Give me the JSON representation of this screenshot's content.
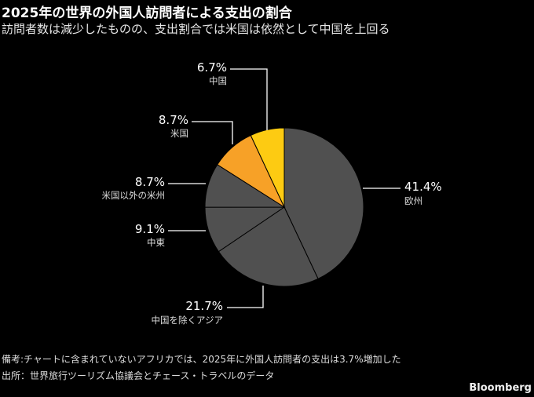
{
  "title": "2025年の世界の外国人訪問者による支出の割合",
  "subtitle": "訪問者数は減少したものの、支出割合では米国は依然として中国を上回る",
  "note": "備考:チャートに含まれていないアフリカでは、2025年に外国人訪問者の支出は3.7%増加した",
  "source": "出所：世界旅行ツーリズム協議会とチェース・トラベルのデータ",
  "brand": "Bloomberg",
  "chart_data": {
    "type": "pie",
    "title": "2025年の世界の外国人訪問者による支出の割合",
    "start": "12 o'clock, clockwise",
    "slices": [
      {
        "name": "欧州",
        "value": 41.4,
        "label": "41.4%",
        "color": "#505050"
      },
      {
        "name": "中国を除くアジア",
        "value": 21.7,
        "label": "21.7%",
        "color": "#505050"
      },
      {
        "name": "中東",
        "value": 9.1,
        "label": "9.1%",
        "color": "#505050"
      },
      {
        "name": "米国以外の米州",
        "value": 8.7,
        "label": "8.7%",
        "color": "#505050"
      },
      {
        "name": "米国",
        "value": 8.7,
        "label": "8.7%",
        "color": "#f7a127"
      },
      {
        "name": "中国",
        "value": 6.7,
        "label": "6.7%",
        "color": "#fdcb12"
      }
    ]
  }
}
